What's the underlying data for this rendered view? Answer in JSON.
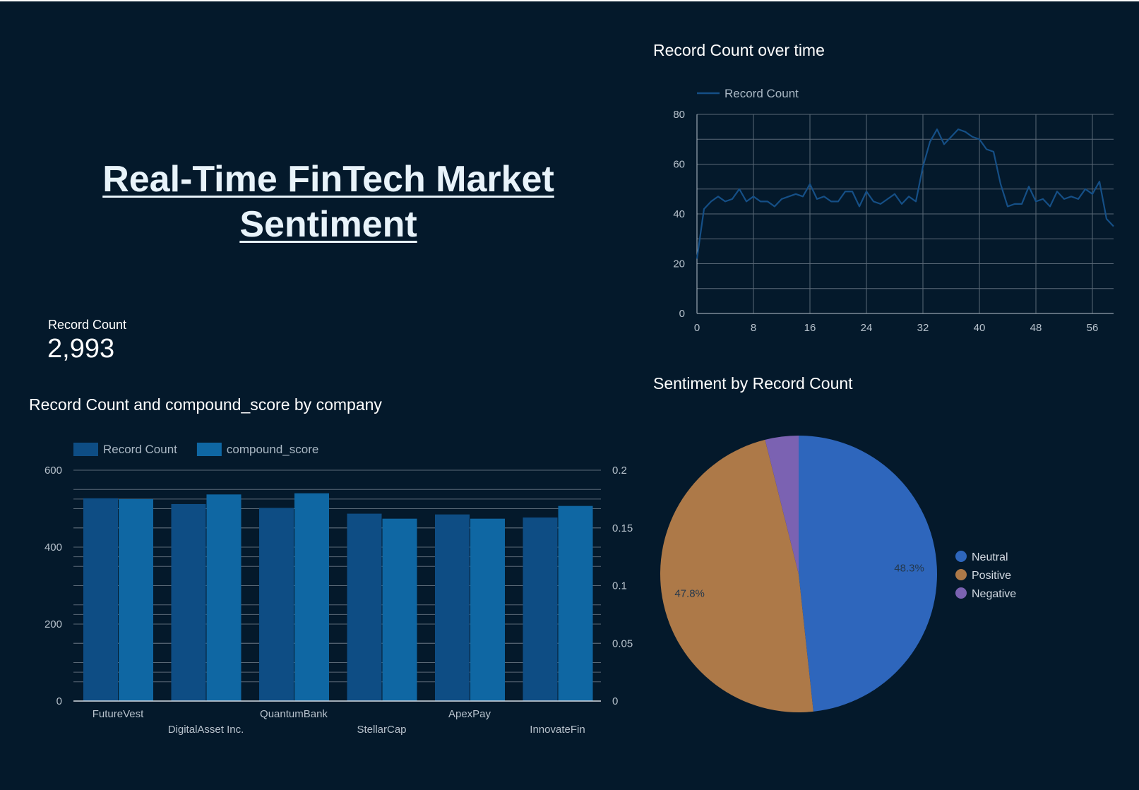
{
  "dashboard": {
    "title": "Real-Time FinTech Market Sentiment"
  },
  "kpi": {
    "label": "Record Count",
    "value": "2,993"
  },
  "colors": {
    "background": "#04192b",
    "line": "#154f86",
    "bar_record_count": "#0e4d84",
    "bar_compound_score": "#0f67a3",
    "grid": "#5a6977",
    "neutral": "#2e66bc",
    "positive": "#ad7948",
    "negative": "#7b62b2"
  },
  "chart_data": [
    {
      "type": "line",
      "title": "Record Count over time",
      "legend": [
        "Record Count"
      ],
      "legend_position": "top-left",
      "grid": true,
      "x_ticks": [
        "0",
        "8",
        "16",
        "24",
        "32",
        "40",
        "48",
        "56"
      ],
      "y_ticks": [
        "0",
        "20",
        "40",
        "60",
        "80"
      ],
      "xlim": [
        0,
        59
      ],
      "ylim": [
        0,
        80
      ],
      "series": [
        {
          "name": "Record Count",
          "x": [
            0,
            1,
            2,
            3,
            4,
            5,
            6,
            7,
            8,
            9,
            10,
            11,
            12,
            13,
            14,
            15,
            16,
            17,
            18,
            19,
            20,
            21,
            22,
            23,
            24,
            25,
            26,
            27,
            28,
            29,
            30,
            31,
            32,
            33,
            34,
            35,
            36,
            37,
            38,
            39,
            40,
            41,
            42,
            43,
            44,
            45,
            46,
            47,
            48,
            49,
            50,
            51,
            52,
            53,
            54,
            55,
            56,
            57,
            58,
            59
          ],
          "values": [
            22,
            42,
            45,
            47,
            45,
            46,
            50,
            45,
            47,
            45,
            45,
            43,
            46,
            47,
            48,
            47,
            52,
            46,
            47,
            45,
            45,
            49,
            49,
            43,
            49,
            45,
            44,
            46,
            48,
            44,
            47,
            45,
            59,
            69,
            74,
            68,
            71,
            74,
            73,
            71,
            70,
            66,
            65,
            52,
            43,
            44,
            44,
            51,
            45,
            46,
            43,
            49,
            46,
            47,
            46,
            50,
            48,
            53,
            38,
            35
          ]
        }
      ]
    },
    {
      "type": "bar",
      "title": "Record Count and compound_score by company",
      "legend_position": "top-left",
      "grid": true,
      "categories": [
        "FutureVest",
        "DigitalAsset Inc.",
        "QuantumBank",
        "StellarCap",
        "ApexPay",
        "InnovateFin"
      ],
      "y_ticks_left": [
        "0",
        "200",
        "400",
        "600"
      ],
      "y_ticks_right": [
        "0",
        "0.05",
        "0.1",
        "0.15",
        "0.2"
      ],
      "ylim_left": [
        0,
        600
      ],
      "ylim_right": [
        0,
        0.2
      ],
      "series": [
        {
          "name": "Record Count",
          "axis": "left",
          "values": [
            527,
            512,
            502,
            487,
            485,
            477
          ]
        },
        {
          "name": "compound_score",
          "axis": "right",
          "values": [
            0.175,
            0.179,
            0.18,
            0.158,
            0.158,
            0.169
          ]
        }
      ]
    },
    {
      "type": "pie",
      "title": "Sentiment by Record Count",
      "legend_position": "right",
      "labels": [
        "Neutral",
        "Positive",
        "Negative"
      ],
      "values": [
        48.3,
        47.8,
        3.9
      ],
      "data_labels": [
        "48.3%",
        "47.8%",
        ""
      ]
    }
  ]
}
